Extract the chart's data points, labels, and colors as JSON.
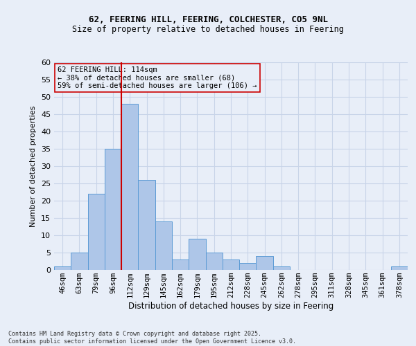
{
  "title_line1": "62, FEERING HILL, FEERING, COLCHESTER, CO5 9NL",
  "title_line2": "Size of property relative to detached houses in Feering",
  "xlabel": "Distribution of detached houses by size in Feering",
  "ylabel": "Number of detached properties",
  "footnote": "Contains HM Land Registry data © Crown copyright and database right 2025.\nContains public sector information licensed under the Open Government Licence v3.0.",
  "annotation_title": "62 FEERING HILL: 114sqm",
  "annotation_line2": "← 38% of detached houses are smaller (68)",
  "annotation_line3": "59% of semi-detached houses are larger (106) →",
  "bin_labels": [
    "46sqm",
    "63sqm",
    "79sqm",
    "96sqm",
    "112sqm",
    "129sqm",
    "145sqm",
    "162sqm",
    "179sqm",
    "195sqm",
    "212sqm",
    "228sqm",
    "245sqm",
    "262sqm",
    "278sqm",
    "295sqm",
    "311sqm",
    "328sqm",
    "345sqm",
    "361sqm",
    "378sqm"
  ],
  "bar_values": [
    1,
    5,
    22,
    35,
    48,
    26,
    14,
    3,
    9,
    5,
    3,
    2,
    4,
    1,
    0,
    0,
    0,
    0,
    0,
    0,
    1
  ],
  "bar_color": "#aec6e8",
  "bar_edge_color": "#5b9bd5",
  "grid_color": "#c8d4e8",
  "bg_color": "#e8eef8",
  "vline_x": 4,
  "vline_color": "#cc0000",
  "ylim": [
    0,
    60
  ],
  "yticks": [
    0,
    5,
    10,
    15,
    20,
    25,
    30,
    35,
    40,
    45,
    50,
    55,
    60
  ]
}
